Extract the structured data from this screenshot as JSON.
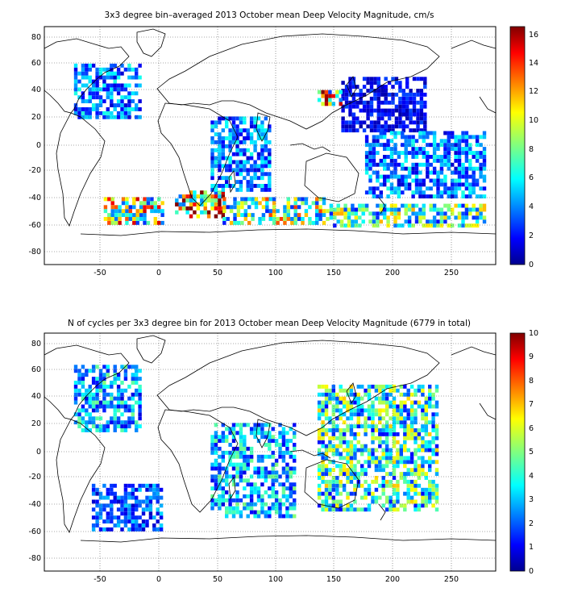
{
  "figure": {
    "panels": [
      {
        "title": "3x3 degree bin–averaged 2013 October mean Deep Velocity Magnitude, cm/s",
        "x_ticks": [
          "-50",
          "0",
          "50",
          "100",
          "150",
          "200",
          "250"
        ],
        "y_ticks": [
          "80",
          "60",
          "40",
          "20",
          "0",
          "-20",
          "-40",
          "-60",
          "-80"
        ],
        "colorbar_ticks": [
          "16",
          "14",
          "12",
          "10",
          "8",
          "6",
          "4",
          "2",
          "0"
        ]
      },
      {
        "title": "N of cycles per 3x3 degree bin for 2013 October mean Deep Velocity Magnitude (6779 in total)",
        "x_ticks": [
          "-50",
          "0",
          "50",
          "100",
          "150",
          "200",
          "250"
        ],
        "y_ticks": [
          "80",
          "60",
          "40",
          "20",
          "0",
          "-20",
          "-40",
          "-60",
          "-80"
        ],
        "colorbar_ticks": [
          "10",
          "9",
          "8",
          "7",
          "6",
          "5",
          "4",
          "3",
          "2",
          "1",
          "0"
        ]
      }
    ]
  },
  "chart_data": [
    {
      "type": "heatmap",
      "title": "3x3 degree bin–averaged 2013 October mean Deep Velocity Magnitude, cm/s",
      "xlim": [
        -90,
        290
      ],
      "ylim": [
        -90,
        90
      ],
      "bin_size_deg": 3,
      "colormap": "jet",
      "clim": [
        0,
        16.5
      ],
      "grid": true,
      "colorbar_placement": "right",
      "regions": [
        {
          "lon": [
            -65,
            -10
          ],
          "lat": [
            20,
            60
          ],
          "value": 4
        },
        {
          "lon": [
            -40,
            10
          ],
          "lat": [
            -60,
            -40
          ],
          "value": 9
        },
        {
          "lon": [
            20,
            60
          ],
          "lat": [
            -55,
            -35
          ],
          "value": 11
        },
        {
          "lon": [
            60,
            150
          ],
          "lat": [
            -60,
            -40
          ],
          "value": 8
        },
        {
          "lon": [
            150,
            280
          ],
          "lat": [
            -62,
            -45
          ],
          "value": 7
        },
        {
          "lon": [
            160,
            230
          ],
          "lat": [
            10,
            50
          ],
          "value": 2
        },
        {
          "lon": [
            140,
            160
          ],
          "lat": [
            30,
            42
          ],
          "value": 10
        },
        {
          "lon": [
            180,
            280
          ],
          "lat": [
            -40,
            10
          ],
          "value": 4
        },
        {
          "lon": [
            50,
            100
          ],
          "lat": [
            -35,
            20
          ],
          "value": 4
        }
      ]
    },
    {
      "type": "heatmap",
      "title": "N of cycles per 3x3 degree bin for 2013 October mean Deep Velocity Magnitude (6779 in total)",
      "total": 6779,
      "xlim": [
        -90,
        290
      ],
      "ylim": [
        -90,
        90
      ],
      "bin_size_deg": 3,
      "colormap": "jet",
      "clim": [
        0,
        10
      ],
      "grid": true,
      "colorbar_placement": "right",
      "regions": [
        {
          "lon": [
            -65,
            -10
          ],
          "lat": [
            15,
            65
          ],
          "value": 3
        },
        {
          "lon": [
            -50,
            10
          ],
          "lat": [
            -60,
            -25
          ],
          "value": 2
        },
        {
          "lon": [
            140,
            240
          ],
          "lat": [
            -45,
            50
          ],
          "value": 4
        },
        {
          "lon": [
            50,
            120
          ],
          "lat": [
            -50,
            20
          ],
          "value": 3
        }
      ]
    }
  ]
}
